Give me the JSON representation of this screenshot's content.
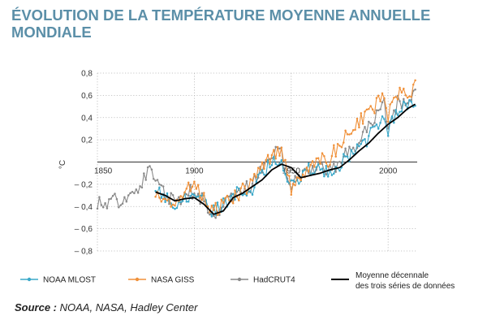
{
  "title": "ÉVOLUTION DE LA TEMPÉRATURE MOYENNE ANNUELLE MONDIALE",
  "source_label": "Source :",
  "source_text": "NOAA, NASA, Hadley Center",
  "chart_data": {
    "type": "line",
    "ylabel": "°C",
    "ylim": [
      -0.8,
      0.8
    ],
    "xlim": [
      1850,
      2015
    ],
    "y_ticks": [
      0.8,
      0.6,
      0.4,
      0.2,
      -0.2,
      -0.4,
      -0.6,
      -0.8
    ],
    "y_tick_labels": [
      "0,8",
      "0,6",
      "0,4",
      "0,2",
      "– 0,2",
      "– 0,4",
      "– 0,6",
      "– 0,8"
    ],
    "x_ticks": [
      1850,
      1900,
      1950,
      2000
    ],
    "x_tick_labels": [
      "1850",
      "1900",
      "1950",
      "2000"
    ],
    "grid": true,
    "legend_position": "bottom",
    "colors": {
      "noaa": "#3aa8c9",
      "nasa": "#f0913a",
      "hadcrut": "#8a8a8a",
      "decadal": "#000000",
      "title": "#5b8fa8"
    },
    "series": [
      {
        "name": "NOAA MLOST",
        "start_year": 1880,
        "end_year": 2014,
        "x": [
          1880,
          1890,
          1900,
          1910,
          1920,
          1930,
          1940,
          1944,
          1950,
          1960,
          1970,
          1980,
          1990,
          1998,
          2000,
          2005,
          2010,
          2014
        ],
        "values": [
          -0.27,
          -0.36,
          -0.28,
          -0.45,
          -0.3,
          -0.23,
          0.0,
          0.04,
          -0.2,
          -0.06,
          -0.08,
          0.05,
          0.22,
          0.45,
          0.3,
          0.46,
          0.5,
          0.56
        ]
      },
      {
        "name": "NASA GISS",
        "start_year": 1880,
        "end_year": 2014,
        "x": [
          1880,
          1890,
          1900,
          1910,
          1920,
          1930,
          1940,
          1944,
          1950,
          1960,
          1970,
          1980,
          1990,
          1998,
          2000,
          2005,
          2010,
          2014
        ],
        "values": [
          -0.3,
          -0.38,
          -0.2,
          -0.45,
          -0.32,
          -0.19,
          0.08,
          0.12,
          -0.22,
          -0.03,
          0.03,
          0.27,
          0.44,
          0.62,
          0.42,
          0.6,
          0.64,
          0.66
        ]
      },
      {
        "name": "HadCRUT4",
        "start_year": 1850,
        "end_year": 2014,
        "x": [
          1850,
          1860,
          1870,
          1878,
          1880,
          1890,
          1900,
          1910,
          1920,
          1930,
          1940,
          1944,
          1950,
          1960,
          1970,
          1980,
          1990,
          1998,
          2000,
          2005,
          2010,
          2014
        ],
        "values": [
          -0.37,
          -0.35,
          -0.28,
          0.0,
          -0.2,
          -0.36,
          -0.25,
          -0.47,
          -0.3,
          -0.2,
          0.03,
          0.12,
          -0.2,
          -0.05,
          -0.07,
          0.1,
          0.3,
          0.55,
          0.3,
          0.54,
          0.51,
          0.6
        ]
      },
      {
        "name": "Moyenne décennale des trois séries de données",
        "legend_lines": [
          "Moyenne décennale",
          "des trois séries de données"
        ],
        "x": [
          1880,
          1885,
          1890,
          1895,
          1900,
          1905,
          1910,
          1915,
          1920,
          1925,
          1930,
          1935,
          1940,
          1945,
          1950,
          1955,
          1960,
          1965,
          1970,
          1975,
          1980,
          1985,
          1990,
          1995,
          2000,
          2005,
          2010,
          2014
        ],
        "values": [
          -0.27,
          -0.3,
          -0.35,
          -0.33,
          -0.32,
          -0.38,
          -0.47,
          -0.44,
          -0.32,
          -0.28,
          -0.22,
          -0.16,
          -0.07,
          -0.02,
          -0.05,
          -0.14,
          -0.12,
          -0.1,
          -0.07,
          -0.05,
          0.02,
          0.1,
          0.17,
          0.26,
          0.34,
          0.4,
          0.48,
          0.52
        ]
      }
    ]
  }
}
